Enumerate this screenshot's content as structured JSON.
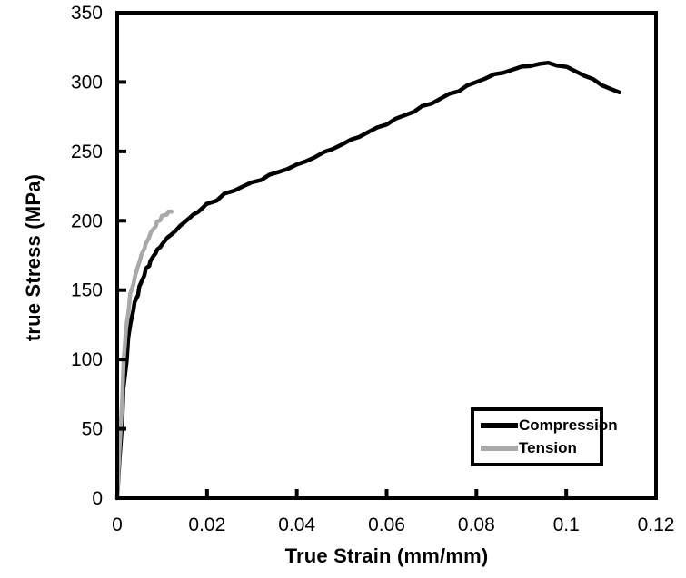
{
  "chart_data": {
    "type": "line",
    "title": "",
    "xlabel": "True Strain (mm/mm)",
    "ylabel": "true Stress (MPa)",
    "xlim": [
      0,
      0.12
    ],
    "ylim": [
      0,
      350
    ],
    "grid": false,
    "legend_position": "lower right",
    "xtick_values": [
      0,
      0.02,
      0.04,
      0.06,
      0.08,
      0.1,
      0.12
    ],
    "xtick_labels": [
      "0",
      "0.02",
      "0.04",
      "0.06",
      "0.08",
      "0.1",
      "0.12"
    ],
    "ytick_values": [
      0,
      50,
      100,
      150,
      200,
      250,
      300,
      350
    ],
    "ytick_labels": [
      "0",
      "50",
      "100",
      "150",
      "200",
      "250",
      "300",
      "350"
    ],
    "axis_color": "#000000",
    "background_color": "#ffffff",
    "series": [
      {
        "name": "Compression",
        "color": "#000000",
        "points": [
          [
            0,
            0
          ],
          [
            0.0005,
            28
          ],
          [
            0.001,
            55
          ],
          [
            0.0015,
            79
          ],
          [
            0.002,
            99
          ],
          [
            0.0025,
            115
          ],
          [
            0.003,
            127
          ],
          [
            0.0035,
            135
          ],
          [
            0.004,
            141
          ],
          [
            0.0045,
            147
          ],
          [
            0.005,
            152
          ],
          [
            0.0055,
            157
          ],
          [
            0.006,
            161
          ],
          [
            0.0065,
            165
          ],
          [
            0.007,
            168
          ],
          [
            0.0075,
            171
          ],
          [
            0.008,
            174
          ],
          [
            0.0085,
            177
          ],
          [
            0.009,
            179
          ],
          [
            0.0095,
            181
          ],
          [
            0.01,
            183
          ],
          [
            0.011,
            187
          ],
          [
            0.012,
            190
          ],
          [
            0.013,
            193
          ],
          [
            0.014,
            196
          ],
          [
            0.015,
            199
          ],
          [
            0.016,
            202
          ],
          [
            0.017,
            204
          ],
          [
            0.018,
            207
          ],
          [
            0.019,
            209
          ],
          [
            0.02,
            212
          ],
          [
            0.022,
            215
          ],
          [
            0.024,
            219
          ],
          [
            0.026,
            222
          ],
          [
            0.028,
            225
          ],
          [
            0.03,
            227
          ],
          [
            0.032,
            230
          ],
          [
            0.034,
            233
          ],
          [
            0.036,
            235
          ],
          [
            0.038,
            238
          ],
          [
            0.04,
            240
          ],
          [
            0.042,
            243
          ],
          [
            0.044,
            246
          ],
          [
            0.046,
            249
          ],
          [
            0.048,
            252
          ],
          [
            0.05,
            255
          ],
          [
            0.052,
            258
          ],
          [
            0.054,
            261
          ],
          [
            0.056,
            264
          ],
          [
            0.058,
            267
          ],
          [
            0.06,
            270
          ],
          [
            0.062,
            273
          ],
          [
            0.064,
            276
          ],
          [
            0.066,
            279
          ],
          [
            0.068,
            282
          ],
          [
            0.07,
            285
          ],
          [
            0.072,
            288
          ],
          [
            0.074,
            291
          ],
          [
            0.076,
            294
          ],
          [
            0.078,
            297
          ],
          [
            0.08,
            300
          ],
          [
            0.082,
            303
          ],
          [
            0.084,
            305
          ],
          [
            0.086,
            307
          ],
          [
            0.088,
            309
          ],
          [
            0.09,
            310.5
          ],
          [
            0.092,
            312
          ],
          [
            0.094,
            313
          ],
          [
            0.096,
            313.5
          ],
          [
            0.098,
            312.5
          ],
          [
            0.1,
            310.5
          ],
          [
            0.102,
            308
          ],
          [
            0.104,
            305
          ],
          [
            0.106,
            301.5
          ],
          [
            0.108,
            298
          ],
          [
            0.11,
            295
          ],
          [
            0.112,
            292
          ]
        ]
      },
      {
        "name": "Tension",
        "color": "#a9a9a9",
        "points": [
          [
            0,
            0
          ],
          [
            0.0005,
            36
          ],
          [
            0.001,
            71
          ],
          [
            0.0015,
            100
          ],
          [
            0.002,
            122
          ],
          [
            0.0025,
            137
          ],
          [
            0.003,
            147
          ],
          [
            0.0035,
            154
          ],
          [
            0.004,
            160
          ],
          [
            0.0045,
            166
          ],
          [
            0.005,
            171
          ],
          [
            0.0055,
            176
          ],
          [
            0.006,
            180
          ],
          [
            0.0065,
            184
          ],
          [
            0.007,
            188
          ],
          [
            0.0075,
            191
          ],
          [
            0.008,
            194
          ],
          [
            0.0085,
            196
          ],
          [
            0.009,
            199
          ],
          [
            0.0095,
            201
          ],
          [
            0.01,
            203
          ],
          [
            0.0105,
            204
          ],
          [
            0.011,
            205
          ],
          [
            0.0115,
            206
          ],
          [
            0.012,
            207
          ]
        ]
      }
    ]
  },
  "legend": {
    "items": [
      {
        "label": "Compression",
        "color": "#000000"
      },
      {
        "label": "Tension",
        "color": "#a9a9a9"
      }
    ]
  }
}
